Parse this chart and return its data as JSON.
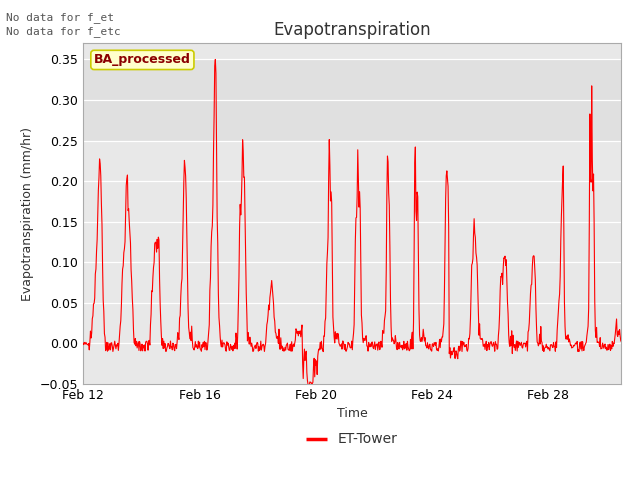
{
  "title": "Evapotranspiration",
  "xlabel": "Time",
  "ylabel": "Evapotranspiration (mm/hr)",
  "ylim": [
    -0.05,
    0.37
  ],
  "yticks": [
    -0.05,
    0.0,
    0.05,
    0.1,
    0.15,
    0.2,
    0.25,
    0.3,
    0.35
  ],
  "line_color": "red",
  "line_width": 0.8,
  "title_fontsize": 12,
  "label_fontsize": 9,
  "tick_fontsize": 9,
  "annotation_text1": "No data for f_et",
  "annotation_text2": "No data for f_etc",
  "box_label": "BA_processed",
  "legend_label": "ET-Tower",
  "fig_bg": "#ffffff",
  "ax_bg": "#e8e8e8",
  "band_bg_light": "#ebebeb",
  "band_bg_dark": "#d8d8d8",
  "grid_color": "#ffffff",
  "n_days": 18.5,
  "x_tick_positions": [
    0,
    4,
    8,
    12,
    16
  ],
  "x_tick_labels": [
    "Feb 12",
    "Feb 16",
    "Feb 20",
    "Feb 24",
    "Feb 28"
  ]
}
